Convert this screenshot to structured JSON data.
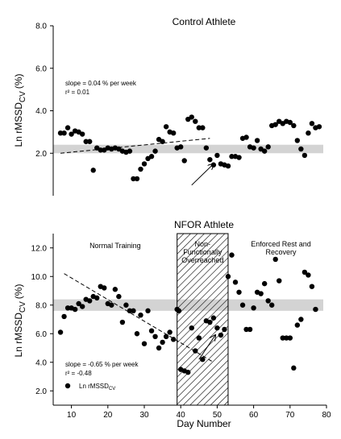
{
  "chart_data": [
    {
      "type": "scatter",
      "title": "Control Athlete",
      "ylabel_main": "Ln rMSSD",
      "ylabel_sub": "CV",
      "ylabel_unit": "(%)",
      "ylim": [
        0,
        8
      ],
      "yticks": [
        "2.0",
        "4.0",
        "6.0",
        "8.0"
      ],
      "band": [
        2.0,
        2.4
      ],
      "annotation_line1": "slope = 0.04 % per week",
      "annotation_line2": "r² = 0.01",
      "trend": {
        "x": [
          7,
          48
        ],
        "y": [
          2.0,
          2.7
        ]
      },
      "arrow": {
        "from": [
          43,
          0.5
        ],
        "to": [
          49,
          1.5
        ]
      },
      "series": [
        {
          "values": [
            [
              7,
              2.95
            ],
            [
              8,
              2.95
            ],
            [
              9,
              3.2
            ],
            [
              10,
              2.9
            ],
            [
              11,
              3.05
            ],
            [
              12,
              3.0
            ],
            [
              13,
              2.9
            ],
            [
              14,
              2.55
            ],
            [
              15,
              2.55
            ],
            [
              16,
              1.2
            ],
            [
              17,
              2.25
            ],
            [
              18,
              2.15
            ],
            [
              19,
              2.15
            ],
            [
              20,
              2.25
            ],
            [
              21,
              2.2
            ],
            [
              22,
              2.25
            ],
            [
              23,
              2.2
            ],
            [
              24,
              2.1
            ],
            [
              25,
              2.05
            ],
            [
              26,
              2.1
            ],
            [
              27,
              0.8
            ],
            [
              28,
              0.8
            ],
            [
              29,
              1.25
            ],
            [
              30,
              1.5
            ],
            [
              31,
              1.75
            ],
            [
              32,
              1.85
            ],
            [
              33,
              2.1
            ],
            [
              34,
              2.65
            ],
            [
              35,
              2.55
            ],
            [
              36,
              3.25
            ],
            [
              37,
              3.0
            ],
            [
              38,
              2.95
            ],
            [
              39,
              2.25
            ],
            [
              40,
              2.3
            ],
            [
              41,
              1.65
            ],
            [
              42,
              3.6
            ],
            [
              43,
              3.7
            ],
            [
              44,
              3.5
            ],
            [
              45,
              3.2
            ],
            [
              46,
              3.2
            ],
            [
              47,
              2.25
            ],
            [
              48,
              1.7
            ],
            [
              49,
              1.45
            ],
            [
              50,
              1.9
            ],
            [
              51,
              1.5
            ],
            [
              52,
              1.45
            ],
            [
              53,
              1.4
            ],
            [
              54,
              1.85
            ],
            [
              55,
              1.85
            ],
            [
              56,
              1.8
            ],
            [
              57,
              2.7
            ],
            [
              58,
              2.75
            ],
            [
              59,
              2.3
            ],
            [
              60,
              2.25
            ],
            [
              61,
              2.6
            ],
            [
              62,
              2.2
            ],
            [
              63,
              2.1
            ],
            [
              64,
              2.3
            ],
            [
              65,
              3.3
            ],
            [
              66,
              3.35
            ],
            [
              67,
              3.5
            ],
            [
              68,
              3.4
            ],
            [
              69,
              3.5
            ],
            [
              70,
              3.45
            ],
            [
              71,
              3.3
            ],
            [
              72,
              2.6
            ],
            [
              73,
              2.2
            ],
            [
              74,
              1.9
            ],
            [
              75,
              2.95
            ],
            [
              76,
              3.4
            ],
            [
              77,
              3.2
            ],
            [
              78,
              3.25
            ]
          ]
        }
      ]
    },
    {
      "type": "scatter",
      "title": "NFOR Athlete",
      "ylabel_main": "Ln rMSSD",
      "ylabel_sub": "CV",
      "ylabel_unit": "(%)",
      "xlabel": "Day Number",
      "xlim": [
        5,
        80
      ],
      "xticks": [
        "10",
        "20",
        "30",
        "40",
        "50",
        "60",
        "70",
        "80"
      ],
      "ylim": [
        1,
        13
      ],
      "yticks": [
        "2.0",
        "4.0",
        "6.0",
        "8.0",
        "10.0",
        "12.0"
      ],
      "band": [
        7.6,
        8.4
      ],
      "hatch_region": [
        39,
        53
      ],
      "regions": [
        {
          "lines": [
            "Normal Training"
          ],
          "x": 22,
          "y": 12.0
        },
        {
          "lines": [
            "Non-",
            "Functionally",
            "Overreached"
          ],
          "x": 46,
          "y": 12.1
        },
        {
          "lines": [
            "Enforced Rest and",
            "Recovery"
          ],
          "x": 67.5,
          "y": 12.1
        }
      ],
      "annotation_line1": "slope = -0.65 % per week",
      "annotation_line2": "r² = -0.48",
      "legend_label": "Ln rMSSD",
      "legend_sub": "CV",
      "trend": {
        "x": [
          8,
          49
        ],
        "y": [
          10.2,
          4.0
        ]
      },
      "arrow": {
        "from": [
          45,
          4.2
        ],
        "to": [
          49.5,
          5.9
        ]
      },
      "series": [
        {
          "values": [
            [
              7,
              6.1
            ],
            [
              8,
              7.2
            ],
            [
              9,
              7.8
            ],
            [
              10,
              7.8
            ],
            [
              11,
              7.7
            ],
            [
              12,
              8.1
            ],
            [
              13,
              7.9
            ],
            [
              14,
              8.4
            ],
            [
              15,
              8.3
            ],
            [
              16,
              8.6
            ],
            [
              17,
              8.5
            ],
            [
              18,
              9.3
            ],
            [
              19,
              9.2
            ],
            [
              20,
              8.1
            ],
            [
              21,
              8.0
            ],
            [
              22,
              9.1
            ],
            [
              23,
              8.6
            ],
            [
              24,
              6.8
            ],
            [
              25,
              8.0
            ],
            [
              26,
              7.6
            ],
            [
              27,
              7.6
            ],
            [
              28,
              6.0
            ],
            [
              29,
              7.3
            ],
            [
              30,
              5.3
            ],
            [
              31,
              7.6
            ],
            [
              32,
              6.2
            ],
            [
              33,
              5.8
            ],
            [
              34,
              5.0
            ],
            [
              35,
              5.4
            ],
            [
              36,
              5.8
            ],
            [
              37,
              6.1
            ],
            [
              38,
              5.6
            ],
            [
              39,
              7.7
            ],
            [
              39.5,
              7.6
            ],
            [
              40,
              3.5
            ],
            [
              41,
              3.4
            ],
            [
              42,
              3.3
            ],
            [
              43,
              6.4
            ],
            [
              44,
              4.8
            ],
            [
              45,
              5.7
            ],
            [
              46,
              4.2
            ],
            [
              47,
              6.9
            ],
            [
              48,
              6.8
            ],
            [
              49,
              7.1
            ],
            [
              50,
              6.4
            ],
            [
              51,
              5.9
            ],
            [
              52,
              6.3
            ],
            [
              53,
              10.0
            ],
            [
              54,
              11.5
            ],
            [
              55,
              9.6
            ],
            [
              56,
              8.9
            ],
            [
              57,
              8.0
            ],
            [
              58,
              6.3
            ],
            [
              59,
              6.3
            ],
            [
              60,
              7.8
            ],
            [
              61,
              8.9
            ],
            [
              62,
              8.8
            ],
            [
              63,
              9.5
            ],
            [
              64,
              8.3
            ],
            [
              65,
              8.0
            ],
            [
              66,
              11.2
            ],
            [
              67,
              9.7
            ],
            [
              68,
              5.7
            ],
            [
              69,
              5.7
            ],
            [
              70,
              5.7
            ],
            [
              71,
              3.6
            ],
            [
              72,
              6.6
            ],
            [
              73,
              7.0
            ],
            [
              74,
              10.3
            ],
            [
              75,
              10.1
            ],
            [
              76,
              9.3
            ],
            [
              77,
              7.7
            ]
          ]
        }
      ]
    }
  ]
}
